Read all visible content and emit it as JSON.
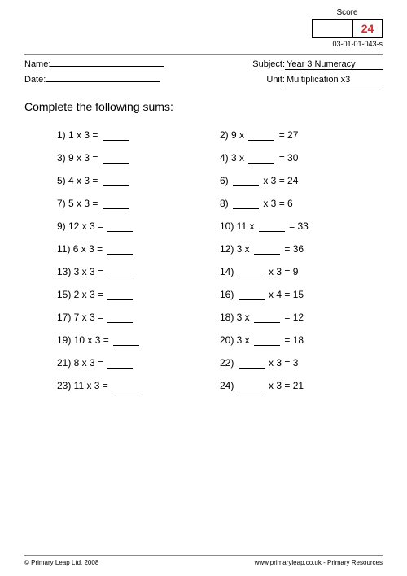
{
  "score": {
    "label": "Score",
    "value": "24"
  },
  "doc_id": "03-01-01-043-s",
  "header": {
    "name_label": "Name:",
    "name_value": "",
    "date_label": "Date:",
    "date_value": "",
    "subject_label": "Subject:",
    "subject_value": " Year 3 Numeracy",
    "unit_label": "Unit:",
    "unit_value": " Multiplication x3"
  },
  "instruction": "Complete the following sums:",
  "problems": [
    {
      "n": "1)",
      "l": "  1 x 3 = ",
      "lblank": true,
      "rn": "2)",
      "r": " 9 x ",
      "rblank": true,
      "rafter": " = 27"
    },
    {
      "n": "3)",
      "l": " 9 x 3 = ",
      "lblank": true,
      "rn": "4)",
      "r": " 3 x ",
      "rblank": true,
      "rafter": " = 30"
    },
    {
      "n": "5)",
      "l": " 4 x 3 = ",
      "lblank": true,
      "rn": "6)",
      "r": "  ",
      "rblank": true,
      "rafter": " x 3 = 24"
    },
    {
      "n": "7)",
      "l": " 5 x 3 = ",
      "lblank": true,
      "rn": "8)",
      "r": "  ",
      "rblank": true,
      "rafter": " x 3 = 6"
    },
    {
      "n": "9)",
      "l": " 12 x 3 = ",
      "lblank": true,
      "rn": "10)",
      "r": " 11 x ",
      "rblank": true,
      "rafter": " = 33"
    },
    {
      "n": "11)",
      "l": " 6 x 3 = ",
      "lblank": true,
      "rn": "12)",
      "r": " 3 x ",
      "rblank": true,
      "rafter": " = 36"
    },
    {
      "n": "13)",
      "l": " 3 x 3 = ",
      "lblank": true,
      "rn": "14)",
      "r": "  ",
      "rblank": true,
      "rafter": " x 3 = 9"
    },
    {
      "n": "15)",
      "l": " 2 x 3 = ",
      "lblank": true,
      "rn": "16)",
      "r": "  ",
      "rblank": true,
      "rafter": " x 4 = 15"
    },
    {
      "n": "17)",
      "l": " 7 x 3 = ",
      "lblank": true,
      "rn": "18)",
      "r": " 3 x ",
      "rblank": true,
      "rafter": " = 12"
    },
    {
      "n": "19)",
      "l": " 10 x 3 = ",
      "lblank": true,
      "rn": "20)",
      "r": " 3 x ",
      "rblank": true,
      "rafter": " = 18"
    },
    {
      "n": "21)",
      "l": " 8 x 3 = ",
      "lblank": true,
      "rn": "22)",
      "r": "  ",
      "rblank": true,
      "rafter": " x 3 = 3"
    },
    {
      "n": "23)",
      "l": " 11 x 3 = ",
      "lblank": true,
      "rn": "24)",
      "r": "  ",
      "rblank": true,
      "rafter": " x 3 = 21"
    }
  ],
  "footer": {
    "left": "© Primary Leap Ltd. 2008",
    "right": "www.primaryleap.co.uk  -  Primary Resources"
  }
}
